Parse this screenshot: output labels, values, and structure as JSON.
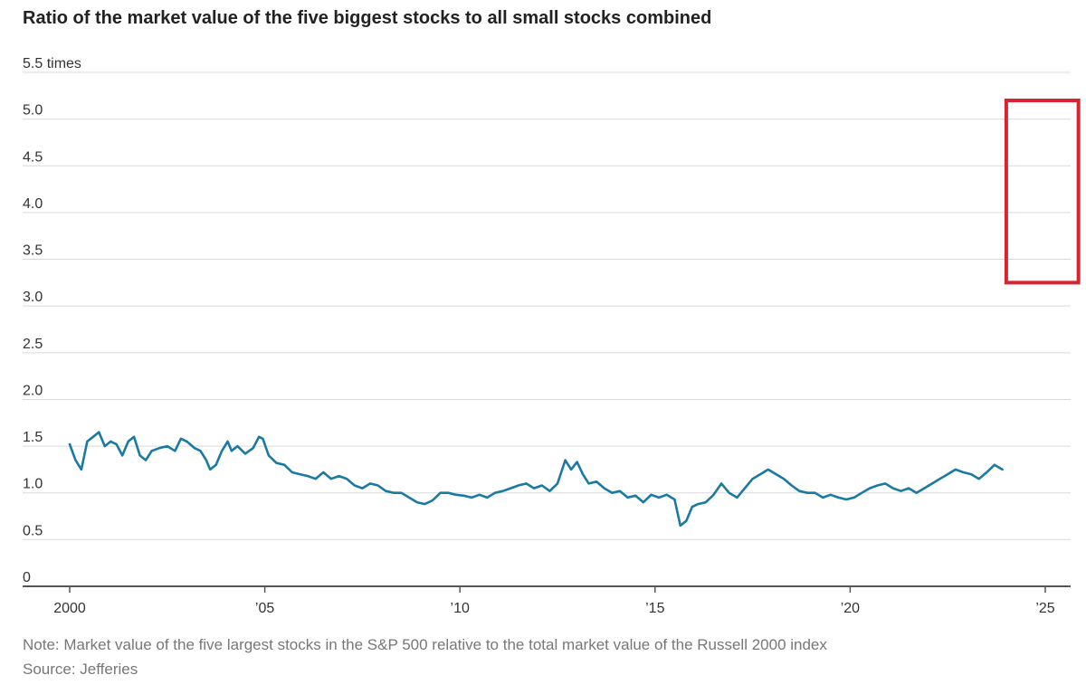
{
  "chart_data": {
    "type": "line",
    "title": "Ratio of the market value of the five biggest stocks to all small stocks combined",
    "y_unit_label": "5.5 times",
    "ylim": [
      0,
      5.5
    ],
    "yticks": [
      {
        "value": 0,
        "label": "0"
      },
      {
        "value": 0.5,
        "label": "0.5"
      },
      {
        "value": 1.0,
        "label": "1.0"
      },
      {
        "value": 1.5,
        "label": "1.5"
      },
      {
        "value": 2.0,
        "label": "2.0"
      },
      {
        "value": 2.5,
        "label": "2.5"
      },
      {
        "value": 3.0,
        "label": "3.0"
      },
      {
        "value": 3.5,
        "label": "3.5"
      },
      {
        "value": 4.0,
        "label": "4.0"
      },
      {
        "value": 4.5,
        "label": "4.5"
      },
      {
        "value": 5.0,
        "label": "5.0"
      },
      {
        "value": 5.5,
        "label": "5.5 times"
      }
    ],
    "xlim": [
      1999.6,
      2025.9
    ],
    "xticks": [
      {
        "value": 2000,
        "label": "2000"
      },
      {
        "value": 2005,
        "label": "’05"
      },
      {
        "value": 2010,
        "label": "’10"
      },
      {
        "value": 2015,
        "label": "’15"
      },
      {
        "value": 2020,
        "label": "’20"
      },
      {
        "value": 2025,
        "label": "’25"
      }
    ],
    "grid": true,
    "line_color": "#1a7aa3",
    "highlight_color": "#d9232e",
    "highlight_range": {
      "x": [
        2024.0,
        2025.85
      ],
      "y": [
        3.25,
        5.2
      ]
    },
    "series": [
      {
        "points": [
          [
            2000.0,
            1.52
          ],
          [
            2000.15,
            1.35
          ],
          [
            2000.3,
            1.25
          ],
          [
            2000.45,
            1.55
          ],
          [
            2000.6,
            1.6
          ],
          [
            2000.75,
            1.65
          ],
          [
            2000.9,
            1.5
          ],
          [
            2001.05,
            1.55
          ],
          [
            2001.2,
            1.52
          ],
          [
            2001.35,
            1.4
          ],
          [
            2001.5,
            1.55
          ],
          [
            2001.65,
            1.6
          ],
          [
            2001.8,
            1.4
          ],
          [
            2001.95,
            1.35
          ],
          [
            2002.1,
            1.45
          ],
          [
            2002.3,
            1.48
          ],
          [
            2002.5,
            1.5
          ],
          [
            2002.7,
            1.45
          ],
          [
            2002.85,
            1.58
          ],
          [
            2003.0,
            1.55
          ],
          [
            2003.2,
            1.48
          ],
          [
            2003.35,
            1.45
          ],
          [
            2003.5,
            1.35
          ],
          [
            2003.6,
            1.25
          ],
          [
            2003.75,
            1.3
          ],
          [
            2003.9,
            1.45
          ],
          [
            2004.05,
            1.55
          ],
          [
            2004.15,
            1.45
          ],
          [
            2004.3,
            1.5
          ],
          [
            2004.5,
            1.42
          ],
          [
            2004.7,
            1.48
          ],
          [
            2004.85,
            1.6
          ],
          [
            2004.95,
            1.58
          ],
          [
            2005.1,
            1.4
          ],
          [
            2005.3,
            1.32
          ],
          [
            2005.5,
            1.3
          ],
          [
            2005.7,
            1.22
          ],
          [
            2005.9,
            1.2
          ],
          [
            2006.1,
            1.18
          ],
          [
            2006.3,
            1.15
          ],
          [
            2006.5,
            1.22
          ],
          [
            2006.7,
            1.15
          ],
          [
            2006.9,
            1.18
          ],
          [
            2007.1,
            1.15
          ],
          [
            2007.3,
            1.08
          ],
          [
            2007.5,
            1.05
          ],
          [
            2007.7,
            1.1
          ],
          [
            2007.9,
            1.08
          ],
          [
            2008.1,
            1.02
          ],
          [
            2008.3,
            1.0
          ],
          [
            2008.5,
            1.0
          ],
          [
            2008.7,
            0.95
          ],
          [
            2008.9,
            0.9
          ],
          [
            2009.1,
            0.88
          ],
          [
            2009.3,
            0.92
          ],
          [
            2009.5,
            1.0
          ],
          [
            2009.7,
            1.0
          ],
          [
            2009.9,
            0.98
          ],
          [
            2010.1,
            0.97
          ],
          [
            2010.3,
            0.95
          ],
          [
            2010.5,
            0.98
          ],
          [
            2010.7,
            0.95
          ],
          [
            2010.9,
            1.0
          ],
          [
            2011.1,
            1.02
          ],
          [
            2011.3,
            1.05
          ],
          [
            2011.5,
            1.08
          ],
          [
            2011.7,
            1.1
          ],
          [
            2011.9,
            1.05
          ],
          [
            2012.1,
            1.08
          ],
          [
            2012.3,
            1.02
          ],
          [
            2012.5,
            1.1
          ],
          [
            2012.7,
            1.35
          ],
          [
            2012.85,
            1.25
          ],
          [
            2013.0,
            1.33
          ],
          [
            2013.15,
            1.2
          ],
          [
            2013.3,
            1.1
          ],
          [
            2013.5,
            1.12
          ],
          [
            2013.7,
            1.05
          ],
          [
            2013.9,
            1.0
          ],
          [
            2014.1,
            1.02
          ],
          [
            2014.3,
            0.95
          ],
          [
            2014.5,
            0.97
          ],
          [
            2014.7,
            0.9
          ],
          [
            2014.9,
            0.98
          ],
          [
            2015.1,
            0.95
          ],
          [
            2015.3,
            0.98
          ],
          [
            2015.5,
            0.93
          ],
          [
            2015.65,
            0.65
          ],
          [
            2015.8,
            0.7
          ],
          [
            2015.95,
            0.85
          ],
          [
            2016.1,
            0.88
          ],
          [
            2016.3,
            0.9
          ],
          [
            2016.5,
            0.98
          ],
          [
            2016.7,
            1.1
          ],
          [
            2016.9,
            1.0
          ],
          [
            2017.1,
            0.95
          ],
          [
            2017.3,
            1.05
          ],
          [
            2017.5,
            1.15
          ],
          [
            2017.7,
            1.2
          ],
          [
            2017.9,
            1.25
          ],
          [
            2018.1,
            1.2
          ],
          [
            2018.3,
            1.15
          ],
          [
            2018.5,
            1.08
          ],
          [
            2018.7,
            1.02
          ],
          [
            2018.9,
            1.0
          ],
          [
            2019.1,
            1.0
          ],
          [
            2019.3,
            0.95
          ],
          [
            2019.5,
            0.98
          ],
          [
            2019.7,
            0.95
          ],
          [
            2019.9,
            0.93
          ],
          [
            2020.1,
            0.95
          ],
          [
            2020.3,
            1.0
          ],
          [
            2020.5,
            1.05
          ],
          [
            2020.7,
            1.08
          ],
          [
            2020.9,
            1.1
          ],
          [
            2021.1,
            1.05
          ],
          [
            2021.3,
            1.02
          ],
          [
            2021.5,
            1.05
          ],
          [
            2021.7,
            1.0
          ],
          [
            2021.9,
            1.05
          ],
          [
            2022.1,
            1.1
          ],
          [
            2022.3,
            1.15
          ],
          [
            2022.5,
            1.2
          ],
          [
            2022.7,
            1.25
          ],
          [
            2022.9,
            1.22
          ],
          [
            2023.1,
            1.2
          ],
          [
            2023.3,
            1.15
          ],
          [
            2023.5,
            1.22
          ],
          [
            2023.7,
            1.3
          ],
          [
            2023.9,
            1.25
          ]
        ]
      }
    ]
  },
  "note": "Note: Market value of the five largest stocks in the S&P 500 relative to the total market value of the Russell 2000 index",
  "source": "Source: Jefferies"
}
